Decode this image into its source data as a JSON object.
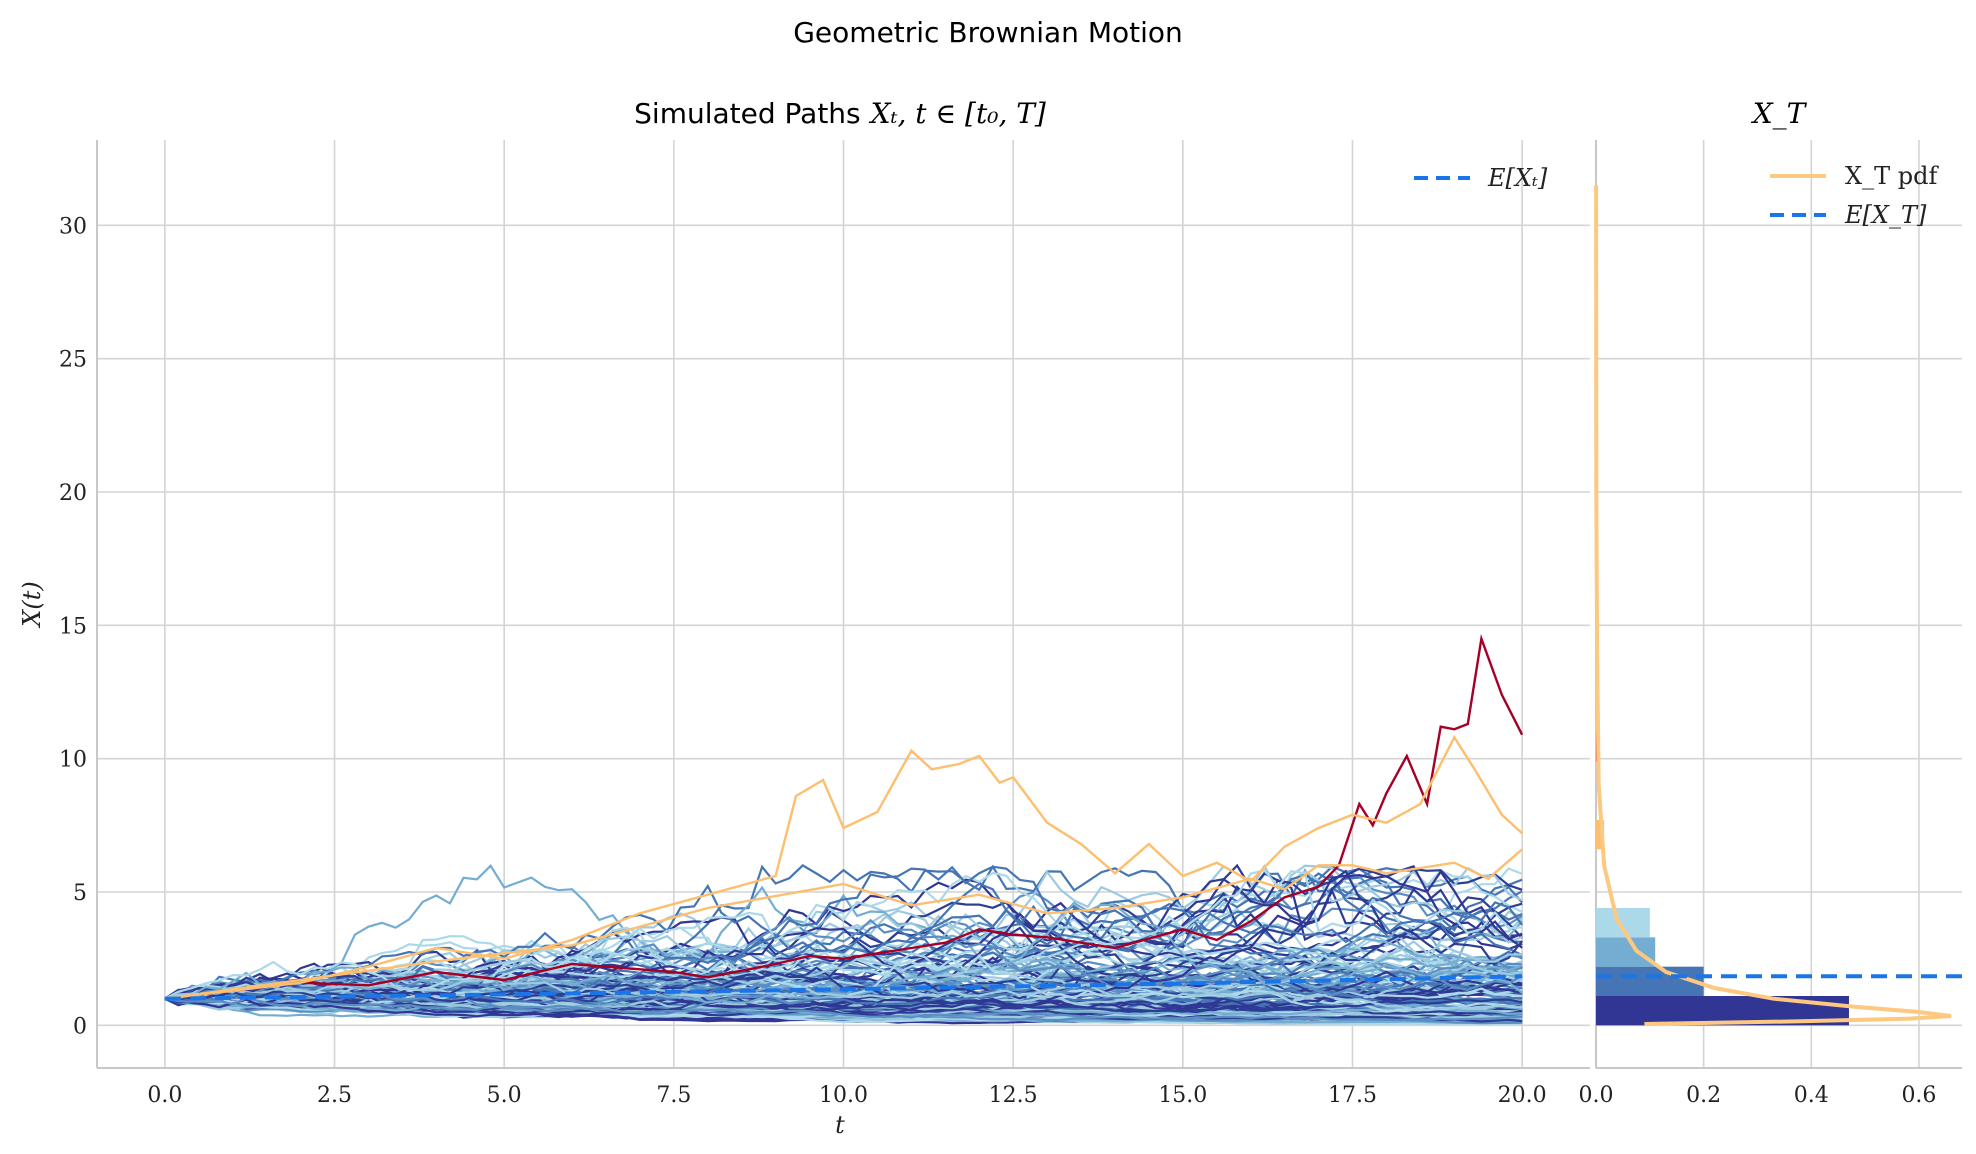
{
  "figure": {
    "suptitle": "Geometric Brownian Motion"
  },
  "chart_data": [
    {
      "type": "line",
      "panel": "paths",
      "title": "Simulated Paths X_t, t ∈ [t_0, T]",
      "title_prefix": "Simulated Paths",
      "title_math": "Xₜ, t ∈ [t₀, T]",
      "xlabel": "t",
      "ylabel": "X(t)",
      "xlim": [
        -1,
        21
      ],
      "ylim": [
        -1.6,
        33.2
      ],
      "xticks": [
        0.0,
        2.5,
        5.0,
        7.5,
        10.0,
        12.5,
        15.0,
        17.5,
        20.0
      ],
      "xtick_labels": [
        "0.0",
        "2.5",
        "5.0",
        "7.5",
        "10.0",
        "12.5",
        "15.0",
        "17.5",
        "20.0"
      ],
      "yticks": [
        0,
        5,
        10,
        15,
        20,
        25,
        30
      ],
      "ytick_labels": [
        "0",
        "5",
        "10",
        "15",
        "20",
        "25",
        "30"
      ],
      "grid": true,
      "legend_position": "top-right",
      "legend": [
        {
          "label": "E[Xₜ]",
          "style": "dashed",
          "color": "#1a75e8"
        }
      ],
      "expectation": {
        "x": [
          0,
          5,
          10,
          15,
          20
        ],
        "y": [
          1.0,
          1.16,
          1.35,
          1.57,
          1.84
        ],
        "color": "#1a75e8"
      },
      "highlight_paths": [
        {
          "color": "#a50026",
          "x": [
            0,
            1,
            2,
            3,
            4,
            5,
            6,
            7,
            7.5,
            8,
            9,
            9.5,
            10,
            11,
            11.5,
            12,
            12.5,
            13,
            14,
            15,
            15.5,
            16,
            16.5,
            17,
            17.3,
            17.6,
            17.8,
            18,
            18.3,
            18.6,
            18.8,
            19,
            19.2,
            19.4,
            19.7,
            20
          ],
          "y": [
            1,
            1.3,
            1.6,
            1.5,
            2.0,
            1.7,
            2.3,
            2.1,
            2.0,
            1.8,
            2.3,
            2.6,
            2.5,
            2.9,
            3.1,
            3.6,
            3.4,
            3.3,
            2.9,
            3.6,
            3.2,
            3.9,
            4.8,
            5.2,
            6.0,
            8.3,
            7.5,
            8.7,
            10.1,
            8.3,
            11.2,
            11.1,
            11.3,
            14.5,
            12.4,
            10.9
          ]
        },
        {
          "color": "#fdbf6f",
          "x": [
            0,
            1,
            2,
            3,
            4,
            5,
            6,
            7,
            8,
            9,
            9.3,
            9.7,
            10,
            10.5,
            11,
            11.3,
            11.7,
            12,
            12.3,
            12.5,
            13,
            13.5,
            14,
            14.5,
            15,
            15.5,
            16,
            16.5,
            17,
            17.5,
            18,
            18.5,
            19,
            19.3,
            19.7,
            20
          ],
          "y": [
            1,
            1.3,
            1.6,
            2.2,
            2.9,
            2.5,
            3.2,
            4.2,
            4.9,
            5.6,
            8.6,
            9.2,
            7.4,
            8.0,
            10.3,
            9.6,
            9.8,
            10.1,
            9.1,
            9.3,
            7.6,
            6.8,
            5.7,
            6.8,
            5.6,
            6.1,
            5.4,
            6.7,
            7.4,
            7.9,
            7.6,
            8.3,
            10.8,
            9.6,
            7.9,
            7.2
          ]
        },
        {
          "color": "#fdbf6f",
          "x": [
            0,
            2,
            4,
            6,
            8,
            10,
            11,
            12,
            13,
            14,
            15,
            16,
            16.5,
            17,
            17.5,
            18,
            18.5,
            19,
            19.5,
            20
          ],
          "y": [
            1,
            1.7,
            2.4,
            3.0,
            4.4,
            5.3,
            4.5,
            4.9,
            4.2,
            4.4,
            4.8,
            5.5,
            5.1,
            6.0,
            6.0,
            5.7,
            5.9,
            6.1,
            5.5,
            6.6
          ]
        }
      ],
      "path_colors": [
        "#313695",
        "#4575b4",
        "#74add1",
        "#abd9e9",
        "#2c3e93",
        "#5b8fc4",
        "#9ecae1"
      ]
    },
    {
      "type": "bar",
      "panel": "distribution",
      "orientation": "horizontal",
      "title": "X_T",
      "title_math": "X_T",
      "xlim": [
        0,
        0.68
      ],
      "ylim": [
        -1.6,
        33.2
      ],
      "xticks": [
        0.0,
        0.2,
        0.4,
        0.6
      ],
      "xtick_labels": [
        "0.0",
        "0.2",
        "0.4",
        "0.6"
      ],
      "grid": true,
      "legend_position": "top-right",
      "legend": [
        {
          "label": "X_T pdf",
          "style": "solid",
          "color": "#fdc880"
        },
        {
          "label": "E[X_T]",
          "style": "dashed",
          "color": "#1a75e8"
        }
      ],
      "bins": [
        {
          "y0": 0.0,
          "y1": 1.1,
          "value": 0.47,
          "color": "#313695"
        },
        {
          "y0": 1.1,
          "y1": 2.2,
          "value": 0.2,
          "color": "#4575b4"
        },
        {
          "y0": 2.2,
          "y1": 3.3,
          "value": 0.11,
          "color": "#74add1"
        },
        {
          "y0": 3.3,
          "y1": 4.4,
          "value": 0.1,
          "color": "#abd9e9"
        },
        {
          "y0": 6.6,
          "y1": 7.7,
          "value": 0.015,
          "color": "#fdbf6f"
        },
        {
          "y0": 9.9,
          "y1": 11.0,
          "value": 0.005,
          "color": "#d73027"
        }
      ],
      "expectation_value": 1.84,
      "pdf": {
        "y": [
          0.05,
          0.15,
          0.25,
          0.35,
          0.5,
          0.7,
          1.0,
          1.4,
          2.0,
          2.8,
          4.0,
          6.0,
          9.0,
          14.0,
          20.0,
          31.5
        ],
        "density": [
          0.09,
          0.38,
          0.58,
          0.66,
          0.6,
          0.48,
          0.33,
          0.22,
          0.13,
          0.075,
          0.038,
          0.015,
          0.005,
          0.002,
          0.0005,
          0.0001
        ],
        "color": "#fdc880"
      }
    }
  ]
}
